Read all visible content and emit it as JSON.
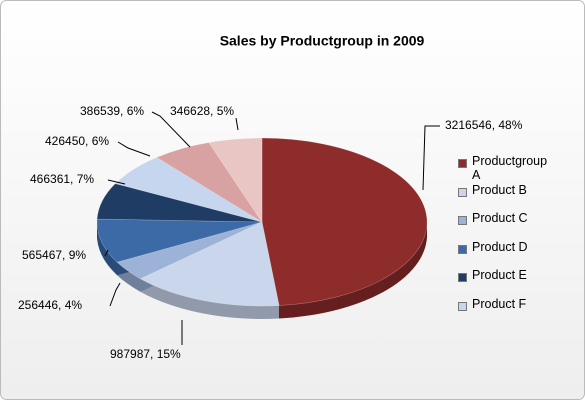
{
  "chart_data": {
    "type": "pie",
    "title": "Sales by Productgroup in 2009",
    "categories": [
      "Productgroup A",
      "Product B",
      "Product C",
      "Product D",
      "Product E",
      "Product F",
      null,
      null
    ],
    "values": [
      3216546,
      987987,
      256446,
      565467,
      466361,
      426450,
      386539,
      346628
    ],
    "value_labels": [
      "3216546, 48%",
      "987987, 15%",
      "256446, 4%",
      "565467, 9%",
      "466361, 7%",
      "426450, 6%",
      "386539, 6%",
      "346628, 5%"
    ],
    "colors": [
      "#8e2b2b",
      "#c9d6ec",
      "#9cb2d6",
      "#3b6aa6",
      "#1f3c64",
      "#c5d6ee",
      "#d8a2a2",
      "#e9c6c4"
    ],
    "legend": "right"
  }
}
